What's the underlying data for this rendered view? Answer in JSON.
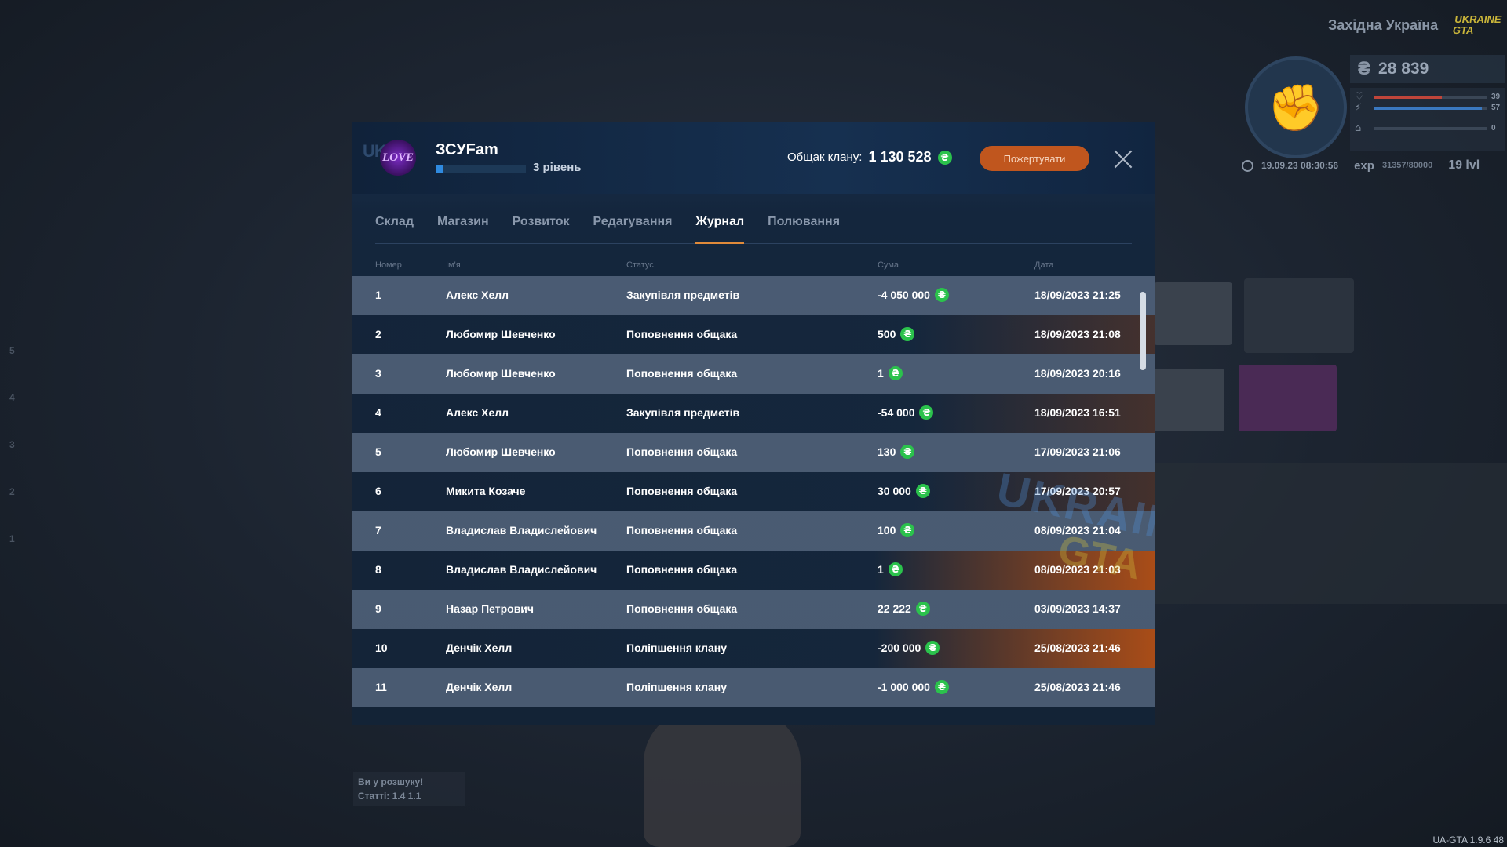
{
  "side_numbers": [
    "5",
    "4",
    "3",
    "2",
    "1"
  ],
  "hud": {
    "server_name": "Західна Україна",
    "logo_text": "UKRAINE GTA",
    "currency_symbol": "₴",
    "money": "28 839",
    "stat1_value": "39",
    "stat2_value": "57",
    "stat3_value": "0",
    "stat1_fill": 0.6,
    "stat2_fill": 0.95,
    "stat3_fill": 0.0,
    "datetime": "19.09.23 08:30:56",
    "exp_label": "exp",
    "exp_value": "31357/80000",
    "level": "19 lvl"
  },
  "wanted": {
    "title": "Ви у розшуку!",
    "articles": "Статті: 1.4  1.1"
  },
  "version": "UA-GTA 1.9.6 48",
  "clan": {
    "logo_text": "LOVE",
    "name": "ЗСУFam",
    "level": "3 рівень",
    "level_progress": 0.08,
    "bank_label": "Общак клану:",
    "bank_value": "1 130 528",
    "coin_symbol": "₴",
    "donate_label": "Пожертувати"
  },
  "tabs": [
    {
      "label": "Склад",
      "active": false
    },
    {
      "label": "Магазин",
      "active": false
    },
    {
      "label": "Розвиток",
      "active": false
    },
    {
      "label": "Редагування",
      "active": false
    },
    {
      "label": "Журнал",
      "active": true
    },
    {
      "label": "Полювання",
      "active": false
    }
  ],
  "table": {
    "headers": {
      "number": "Номер",
      "name": "Ім'я",
      "status": "Статус",
      "sum": "Сума",
      "date": "Дата"
    },
    "rows": [
      {
        "number": "1",
        "name": "Алекс Хелл",
        "status": "Закупівля предметів",
        "sum": "-4 050 000",
        "date": "18/09/2023 21:25"
      },
      {
        "number": "2",
        "name": "Любомир Шевченко",
        "status": "Поповнення общака",
        "sum": "500",
        "date": "18/09/2023 21:08"
      },
      {
        "number": "3",
        "name": "Любомир Шевченко",
        "status": "Поповнення общака",
        "sum": "1",
        "date": "18/09/2023 20:16"
      },
      {
        "number": "4",
        "name": "Алекс Хелл",
        "status": "Закупівля предметів",
        "sum": "-54 000",
        "date": "18/09/2023 16:51"
      },
      {
        "number": "5",
        "name": "Любомир Шевченко",
        "status": "Поповнення общака",
        "sum": "130",
        "date": "17/09/2023 21:06"
      },
      {
        "number": "6",
        "name": "Микита Козаче",
        "status": "Поповнення общака",
        "sum": "30 000",
        "date": "17/09/2023 20:57"
      },
      {
        "number": "7",
        "name": "Владислав Владислейович",
        "status": "Поповнення общака",
        "sum": "100",
        "date": "08/09/2023 21:04"
      },
      {
        "number": "8",
        "name": "Владислав Владислейович",
        "status": "Поповнення общака",
        "sum": "1",
        "date": "08/09/2023 21:03"
      },
      {
        "number": "9",
        "name": "Назар Петрович",
        "status": "Поповнення общака",
        "sum": "22 222",
        "date": "03/09/2023 14:37"
      },
      {
        "number": "10",
        "name": "Денчік Хелл",
        "status": "Поліпшення клану",
        "sum": "-200 000",
        "date": "25/08/2023 21:46"
      },
      {
        "number": "11",
        "name": "Денчік Хелл",
        "status": "Поліпшення клану",
        "sum": "-1 000 000",
        "date": "25/08/2023 21:46"
      }
    ]
  },
  "watermark": {
    "line1": "UKRAINE",
    "line2": "GTA"
  },
  "colors": {
    "accent_tab": "#e08a3a",
    "donate_button": "#c0561e",
    "coin": "#2bc24c",
    "progress": "#2f8ae0"
  }
}
